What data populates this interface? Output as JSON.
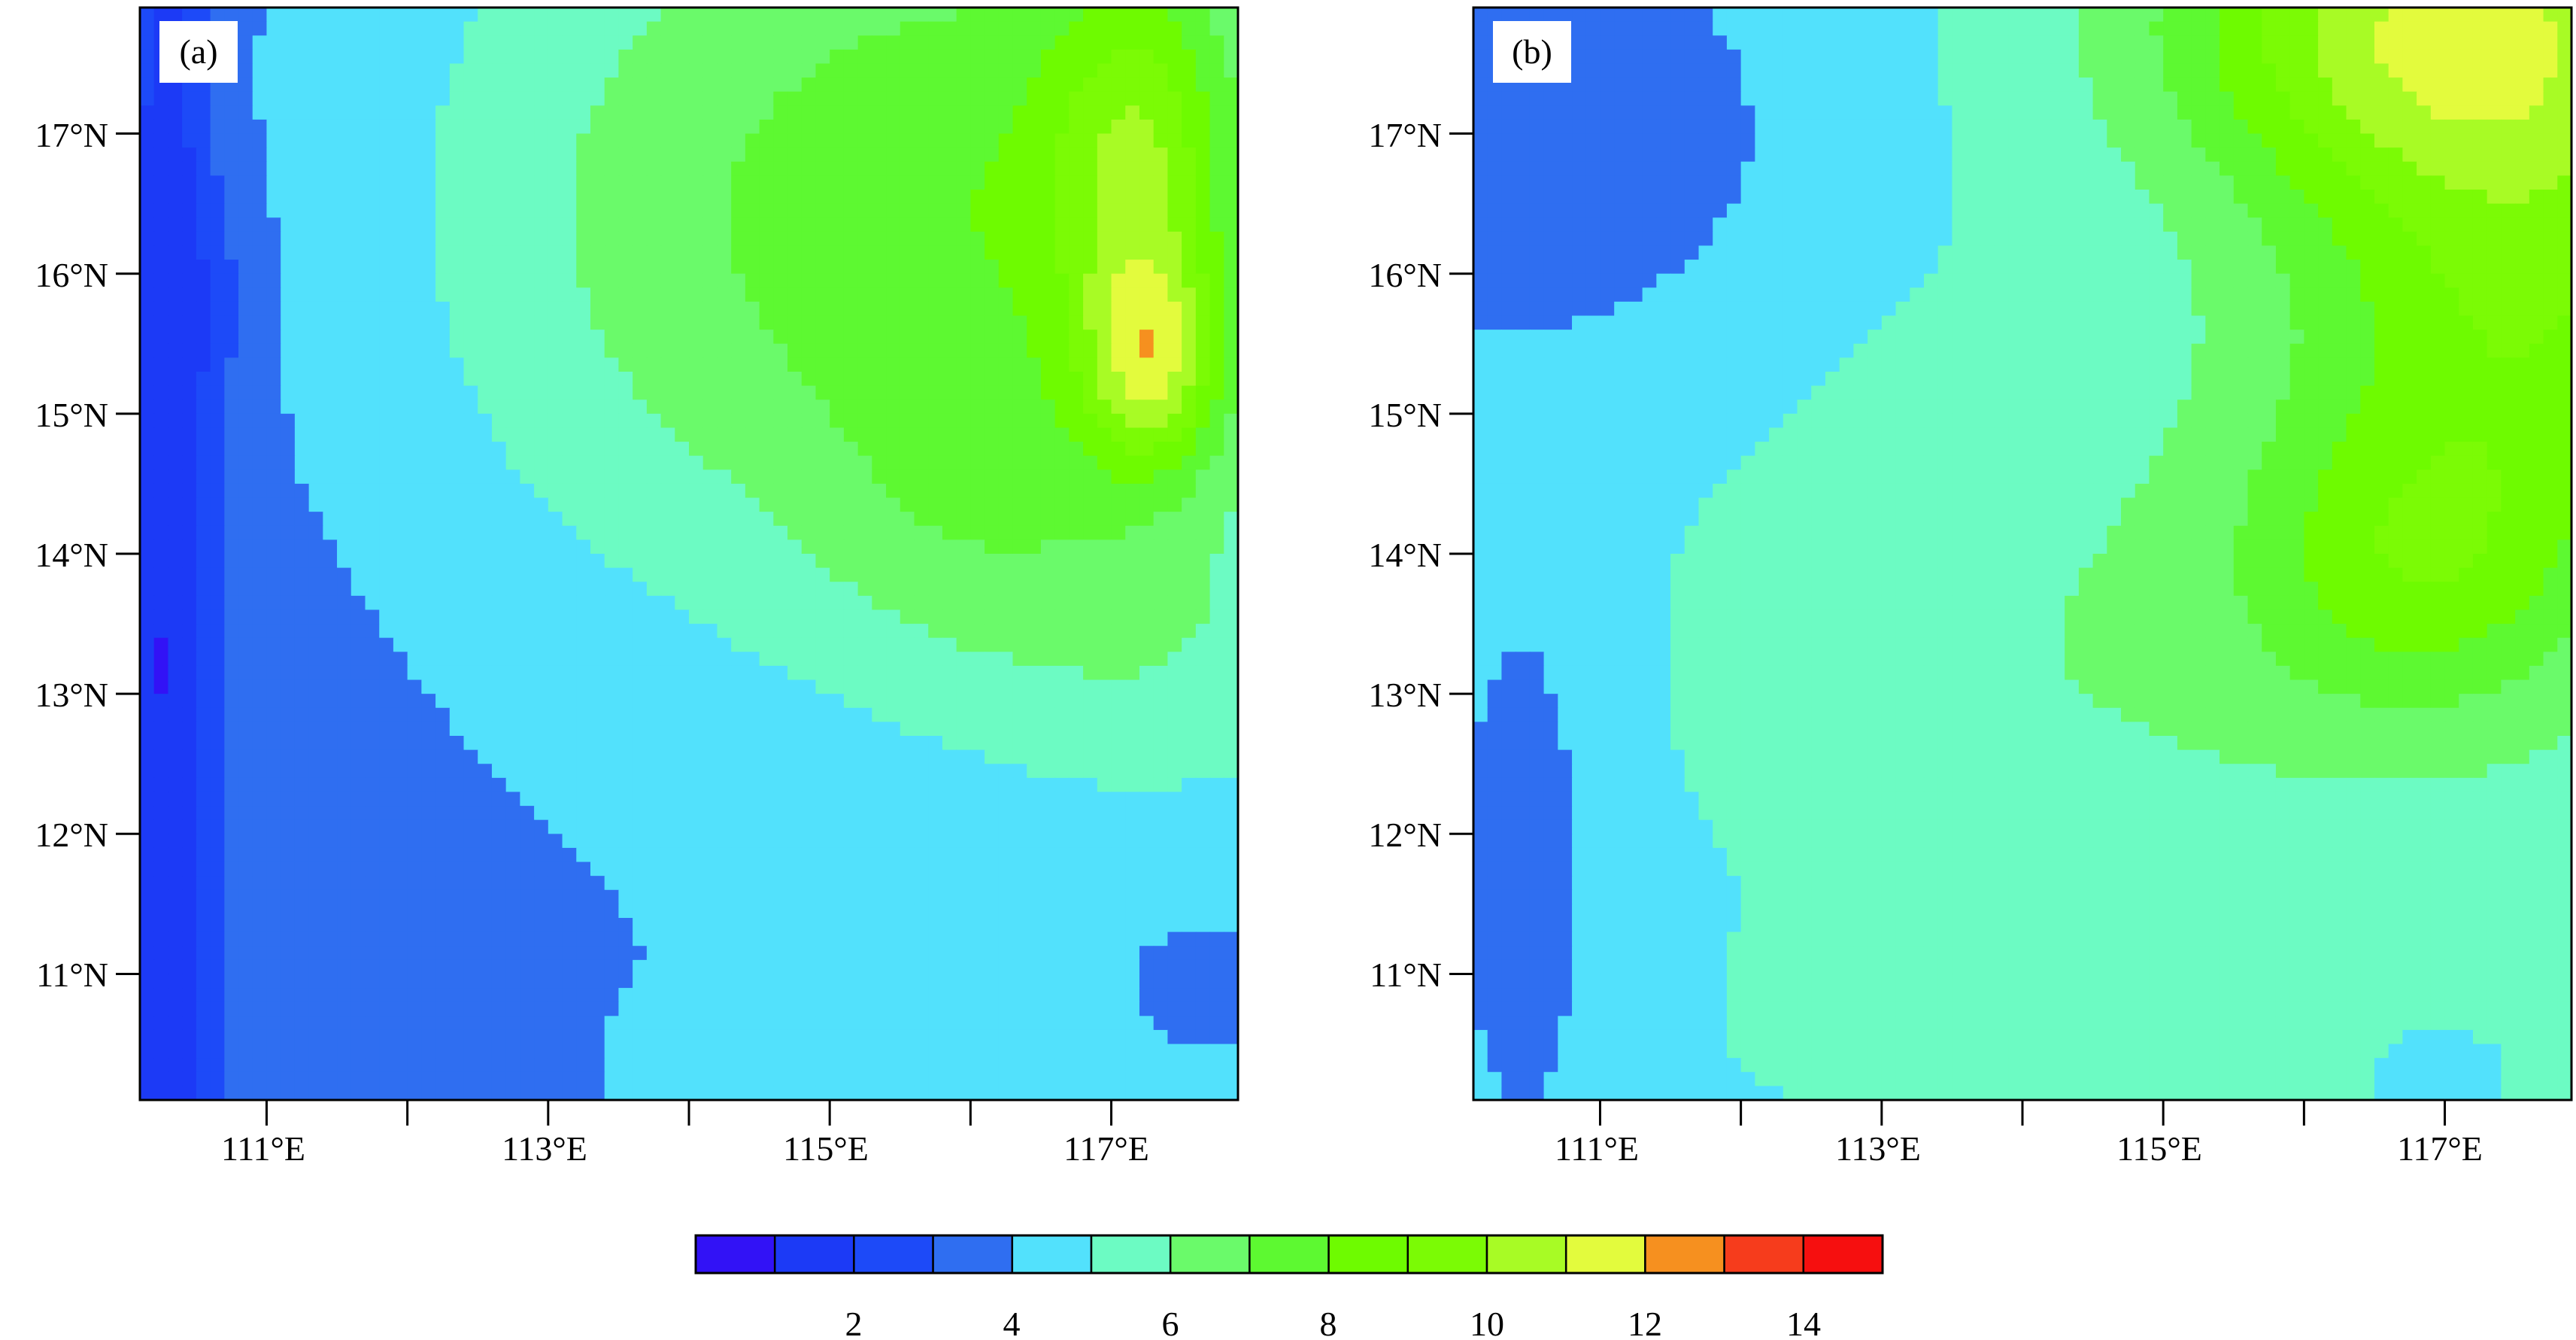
{
  "chart_data": [
    {
      "type": "heatmap",
      "panel_label": "(a)",
      "x_ticks": [
        "111°E",
        "113°E",
        "115°E",
        "117°E"
      ],
      "y_ticks": [
        "11°N",
        "12°N",
        "13°N",
        "14°N",
        "15°N",
        "16°N",
        "17°N"
      ],
      "xlim": [
        110.1,
        117.9
      ],
      "ylim": [
        10.1,
        17.9
      ],
      "grid": false,
      "centers": [
        {
          "lon": 110.3,
          "lat": 14.0,
          "amp": -2.6,
          "sx": 0.25,
          "sy": 5.0
        },
        {
          "lon": 110.7,
          "lat": 15.8,
          "amp": -0.6,
          "sx": 0.25,
          "sy": 0.5
        },
        {
          "lon": 112.3,
          "lat": 10.9,
          "amp": -0.7,
          "sx": 0.35,
          "sy": 0.4
        },
        {
          "lon": 114.3,
          "lat": 16.3,
          "amp": 2.3,
          "sx": 1.7,
          "sy": 1.9
        },
        {
          "lon": 116.4,
          "lat": 16.6,
          "amp": 2.0,
          "sx": 1.2,
          "sy": 1.5
        },
        {
          "lon": 117.2,
          "lat": 16.8,
          "amp": 3.4,
          "sx": 0.45,
          "sy": 1.0
        },
        {
          "lon": 117.3,
          "lat": 15.35,
          "amp": 4.2,
          "sx": 0.35,
          "sy": 0.55
        },
        {
          "lon": 116.1,
          "lat": 14.2,
          "amp": 1.3,
          "sx": 0.9,
          "sy": 0.9
        },
        {
          "lon": 117.4,
          "lat": 13.3,
          "amp": 0.9,
          "sx": 0.8,
          "sy": 0.8
        },
        {
          "lon": 115.0,
          "lat": 10.3,
          "amp": 0.6,
          "sx": 1.0,
          "sy": 0.4
        },
        {
          "lon": 117.8,
          "lat": 11.0,
          "amp": -0.7,
          "sx": 0.8,
          "sy": 0.8
        }
      ],
      "base": 3.3,
      "slope_lon": 0.16,
      "slope_lat": 0.05
    },
    {
      "type": "heatmap",
      "panel_label": "(b)",
      "x_ticks": [
        "111°E",
        "113°E",
        "115°E",
        "117°E"
      ],
      "y_ticks": [
        "11°N",
        "12°N",
        "13°N",
        "14°N",
        "15°N",
        "16°N",
        "17°N"
      ],
      "xlim": [
        110.1,
        117.9
      ],
      "ylim": [
        10.1,
        17.9
      ],
      "grid": false,
      "centers": [
        {
          "lon": 110.8,
          "lat": 17.0,
          "amp": -1.4,
          "sx": 1.1,
          "sy": 1.0
        },
        {
          "lon": 110.5,
          "lat": 12.0,
          "amp": -1.0,
          "sx": 0.35,
          "sy": 1.4
        },
        {
          "lon": 114.0,
          "lat": 13.2,
          "amp": 1.1,
          "sx": 2.0,
          "sy": 1.6
        },
        {
          "lon": 117.0,
          "lat": 17.8,
          "amp": 5.5,
          "sx": 1.4,
          "sy": 0.9
        },
        {
          "lon": 117.6,
          "lat": 15.8,
          "amp": 3.3,
          "sx": 1.2,
          "sy": 1.2
        },
        {
          "lon": 116.8,
          "lat": 13.9,
          "amp": 2.8,
          "sx": 0.9,
          "sy": 0.8
        },
        {
          "lon": 112.8,
          "lat": 10.6,
          "amp": 0.6,
          "sx": 0.8,
          "sy": 0.5
        },
        {
          "lon": 117.0,
          "lat": 10.3,
          "amp": -0.4,
          "sx": 0.4,
          "sy": 0.3
        }
      ],
      "base": 4.3,
      "slope_lon": 0.12,
      "slope_lat": 0.02
    }
  ],
  "colorbar": {
    "tick_labels": [
      "2",
      "4",
      "6",
      "8",
      "10",
      "12",
      "14"
    ],
    "tick_values": [
      2,
      4,
      6,
      8,
      10,
      12,
      14
    ],
    "levels_min": 0,
    "levels_max": 15,
    "colors": [
      "#3212f6",
      "#1c3af6",
      "#1d4af8",
      "#2f6ef1",
      "#52e1fc",
      "#6cfbc3",
      "#6afa6a",
      "#5df931",
      "#6efb00",
      "#7bfb05",
      "#a8fb25",
      "#e3fb3d",
      "#f6901f",
      "#f63c1c",
      "#f60f0f"
    ]
  }
}
